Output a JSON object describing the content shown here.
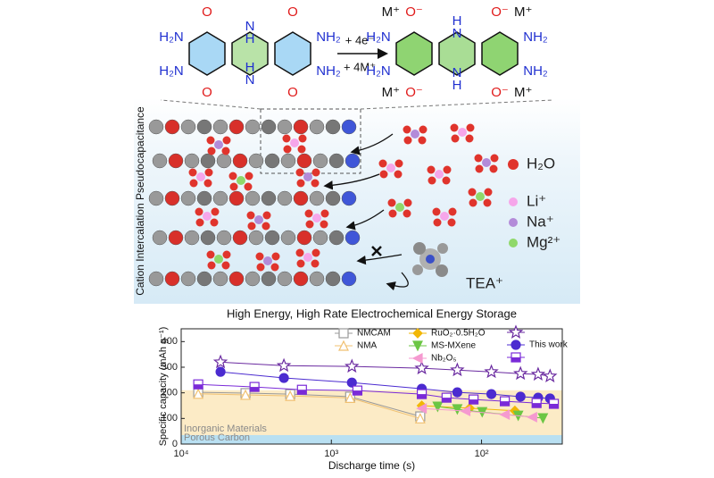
{
  "diagram": {
    "side_label": "Cation Intercalation Pseudocapacitance",
    "reaction": {
      "electrons": "+ 4e⁻",
      "cations": "+ 4M⁺"
    },
    "oxidized": {
      "labels": [
        "O",
        "O",
        "O",
        "O",
        "H₂N",
        "H₂N",
        "NH₂",
        "NH₂",
        "N",
        "H",
        "H",
        "N"
      ]
    },
    "reduced": {
      "labels": [
        "M⁺",
        "O⁻",
        "O⁻",
        "M⁺",
        "M⁺",
        "O⁻",
        "O⁻",
        "M⁺",
        "H₂N",
        "H₂N",
        "NH₂",
        "NH₂",
        "H",
        "N",
        "N",
        "H"
      ]
    },
    "legend": {
      "water": "H₂O",
      "lithium": "Li⁺",
      "sodium": "Na⁺",
      "magnesium": "Mg²⁺",
      "tea": "TEA⁺"
    }
  },
  "chart_data": {
    "type": "scatter",
    "title": "High Energy, High Rate Electrochemical Energy Storage",
    "xlabel": "Discharge time (s)",
    "ylabel": "Specific capacity (mAh g⁻¹)",
    "log_x": true,
    "xlim": [
      10000,
      29
    ],
    "ylim": [
      0,
      450
    ],
    "xticks": [
      {
        "value": 10000,
        "label": "10⁴"
      },
      {
        "value": 1000,
        "label": "10³"
      },
      {
        "value": 100,
        "label": "10²"
      }
    ],
    "yticks": [
      0,
      100,
      200,
      300,
      400
    ],
    "bands": [
      {
        "label": "Inorganic Materials",
        "range": [
          35,
          210
        ],
        "color": "#fcebc6"
      },
      {
        "label": "Porous Carbon",
        "range": [
          0,
          35
        ],
        "color": "#b9e0f2"
      }
    ],
    "series": [
      {
        "name": "NMCAM",
        "color": "#9a9a9a",
        "marker": "square-open",
        "x": [
          7700,
          3730,
          1880,
          750,
          256
        ],
        "values": [
          202,
          199,
          195,
          185,
          108
        ]
      },
      {
        "name": "NMA",
        "color": "#f0c070",
        "marker": "triangle-open",
        "x": [
          7700,
          3730,
          1880,
          750,
          256
        ],
        "values": [
          196,
          192,
          188,
          180,
          100
        ]
      },
      {
        "name": "RuO₂·0.5H₂O",
        "color": "#f2b705",
        "marker": "diamond",
        "x": [
          250,
          120,
          60
        ],
        "values": [
          150,
          140,
          130
        ]
      },
      {
        "name": "MS-MXene",
        "color": "#6cc644",
        "marker": "triangle-down",
        "x": [
          196,
          145,
          99,
          57,
          39
        ],
        "values": [
          146,
          136,
          125,
          111,
          101
        ]
      },
      {
        "name": "Nb₂O₅",
        "color": "#f59ad0",
        "marker": "triangle-left",
        "x": [
          250,
          128,
          70,
          46
        ],
        "values": [
          139,
          129,
          115,
          105
        ]
      },
      {
        "color": "#6a2aa0",
        "marker": "star",
        "x": [
          5470,
          2070,
          730,
          250,
          145,
          86,
          55,
          42,
          35
        ],
        "values": [
          320,
          306,
          303,
          296,
          289,
          282,
          275,
          272,
          265
        ]
      },
      {
        "name": "This work",
        "color": "#4b2bd0",
        "marker": "circle",
        "x": [
          5470,
          2070,
          730,
          250,
          145,
          86,
          55,
          42,
          35
        ],
        "values": [
          282,
          258,
          240,
          216,
          202,
          195,
          185,
          181,
          178
        ]
      },
      {
        "color": "#7a2ad8",
        "marker": "square-half",
        "x": [
          7700,
          3250,
          1570,
          671,
          250,
          171,
          113,
          70,
          43,
          33
        ],
        "values": [
          233,
          223,
          212,
          209,
          195,
          181,
          174,
          167,
          160,
          157
        ]
      }
    ]
  }
}
